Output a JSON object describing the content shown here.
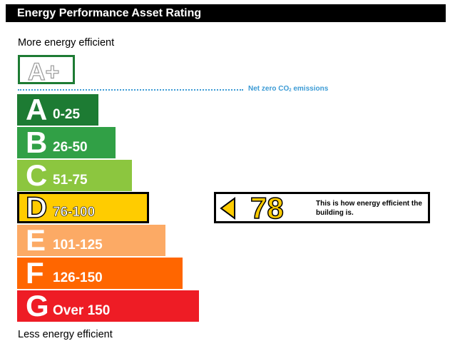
{
  "header": {
    "title": "Energy Performance Asset Rating"
  },
  "labels": {
    "more_efficient": "More energy efficient",
    "less_efficient": "Less energy efficient"
  },
  "aplus": {
    "label": "A+",
    "color": "#1d7b33"
  },
  "net_zero": {
    "text_main": "Net zero CO",
    "text_sub": "2",
    "text_end": " emissions",
    "color": "#3c9bd5"
  },
  "chart_data": {
    "type": "bar",
    "title": "Energy Performance Asset Rating",
    "bands": [
      {
        "letter": "A",
        "range": "0-25",
        "min": 0,
        "max": 25,
        "color": "#1d7b33"
      },
      {
        "letter": "B",
        "range": "26-50",
        "min": 26,
        "max": 50,
        "color": "#31a046"
      },
      {
        "letter": "C",
        "range": "51-75",
        "min": 51,
        "max": 75,
        "color": "#8cc63f"
      },
      {
        "letter": "D",
        "range": "76-100",
        "min": 76,
        "max": 100,
        "color": "#ffcc00"
      },
      {
        "letter": "E",
        "range": "101-125",
        "min": 101,
        "max": 125,
        "color": "#fcaa65"
      },
      {
        "letter": "F",
        "range": "126-150",
        "min": 126,
        "max": 150,
        "color": "#ff6600"
      },
      {
        "letter": "G",
        "range": "Over 150",
        "min": 151,
        "max": null,
        "color": "#ee1c25"
      }
    ],
    "current_rating": {
      "score": 78,
      "band": "D"
    }
  },
  "rating": {
    "score": "78",
    "description": "This is how energy efficient the building is.",
    "color": "#ffcc00"
  }
}
